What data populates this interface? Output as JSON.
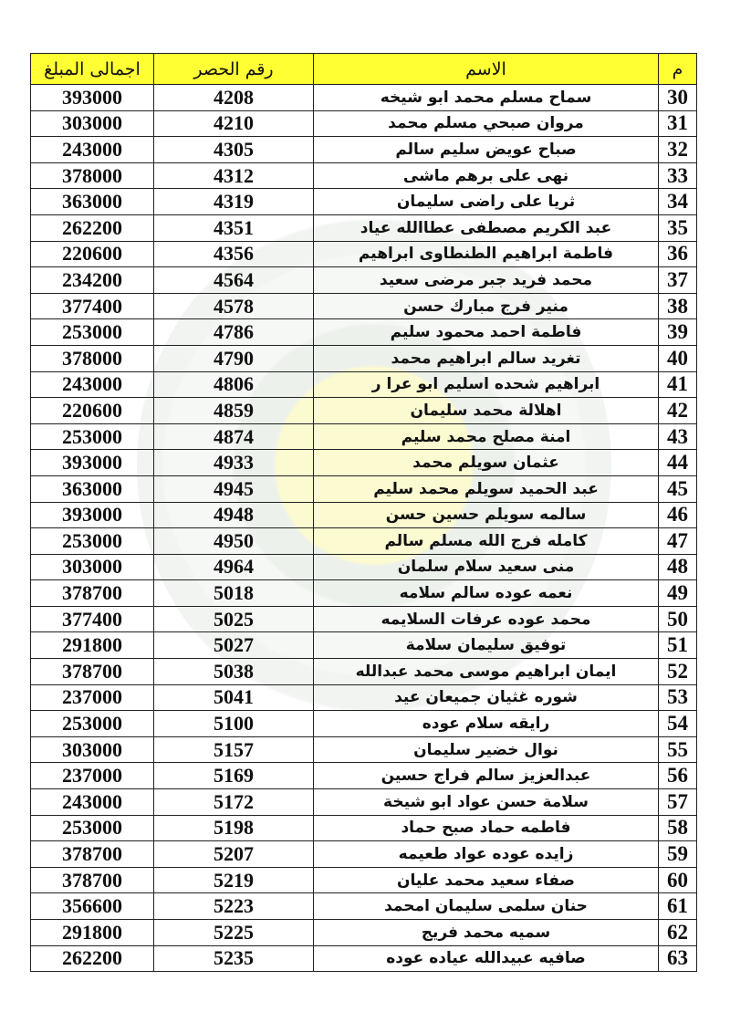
{
  "headers": {
    "m": "م",
    "name": "الاسم",
    "number": "رقم الحصر",
    "amount": "اجمالى المبلغ"
  },
  "rows": [
    {
      "m": "30",
      "name": "سماح مسلم محمد ابو شيخه",
      "number": "4208",
      "amount": "393000"
    },
    {
      "m": "31",
      "name": "مروان صبحي مسلم محمد",
      "number": "4210",
      "amount": "303000"
    },
    {
      "m": "32",
      "name": "صباح عويض سليم سالم",
      "number": "4305",
      "amount": "243000"
    },
    {
      "m": "33",
      "name": "نهى على برهم ماشى",
      "number": "4312",
      "amount": "378000"
    },
    {
      "m": "34",
      "name": "ثريا على راضى سليمان",
      "number": "4319",
      "amount": "363000"
    },
    {
      "m": "35",
      "name": "عبد الكريم مصطفى عطاالله  عياد",
      "number": "4351",
      "amount": "262200"
    },
    {
      "m": "36",
      "name": "فاطمة ابراهيم الطنطاوى ابراهيم",
      "number": "4356",
      "amount": "220600"
    },
    {
      "m": "37",
      "name": "محمد فريد جبر مرضى سعيد",
      "number": "4564",
      "amount": "234200"
    },
    {
      "m": "38",
      "name": "منير فرج مبارك حسن",
      "number": "4578",
      "amount": "377400"
    },
    {
      "m": "39",
      "name": "فاطمة احمد محمود سليم",
      "number": "4786",
      "amount": "253000"
    },
    {
      "m": "40",
      "name": "تغريد سالم ابراهيم محمد",
      "number": "4790",
      "amount": "378000"
    },
    {
      "m": "41",
      "name": "ابراهيم شحده اسليم ابو عرا ر",
      "number": "4806",
      "amount": "243000"
    },
    {
      "m": "42",
      "name": "اهلالة محمد سليمان",
      "number": "4859",
      "amount": "220600"
    },
    {
      "m": "43",
      "name": "امنة مصلح محمد سليم",
      "number": "4874",
      "amount": "253000"
    },
    {
      "m": "44",
      "name": "عثمان سويلم محمد",
      "number": "4933",
      "amount": "393000"
    },
    {
      "m": "45",
      "name": "عبد الحميد سويلم محمد سليم",
      "number": "4945",
      "amount": "363000"
    },
    {
      "m": "46",
      "name": "سالمه سويلم حسين حسن",
      "number": "4948",
      "amount": "393000"
    },
    {
      "m": "47",
      "name": "كامله فرج الله مسلم سالم",
      "number": "4950",
      "amount": "253000"
    },
    {
      "m": "48",
      "name": "منى سعيد سلام سلمان",
      "number": "4964",
      "amount": "303000"
    },
    {
      "m": "49",
      "name": "نعمه عوده سالم سلامه",
      "number": "5018",
      "amount": "378700"
    },
    {
      "m": "50",
      "name": "محمد عوده عرفات السلايمه",
      "number": "5025",
      "amount": "377400"
    },
    {
      "m": "51",
      "name": "توفيق سليمان سلامة",
      "number": "5027",
      "amount": "291800"
    },
    {
      "m": "52",
      "name": "ايمان ابراهيم موسى محمد عبدالله",
      "number": "5038",
      "amount": "378700"
    },
    {
      "m": "53",
      "name": "شوره غثيان جميعان عيد",
      "number": "5041",
      "amount": "237000"
    },
    {
      "m": "54",
      "name": "رايقه سلام عوده",
      "number": "5100",
      "amount": "253000"
    },
    {
      "m": "55",
      "name": "نوال خضير سليمان",
      "number": "5157",
      "amount": "303000"
    },
    {
      "m": "56",
      "name": "عبدالعزيز سالم فراج حسين",
      "number": "5169",
      "amount": "237000"
    },
    {
      "m": "57",
      "name": "سلامة حسن عواد ابو شيخة",
      "number": "5172",
      "amount": "243000"
    },
    {
      "m": "58",
      "name": "فاطمه حماد صبح حماد",
      "number": "5198",
      "amount": "253000"
    },
    {
      "m": "59",
      "name": "زايده عوده عواد طعيمه",
      "number": "5207",
      "amount": "378700"
    },
    {
      "m": "60",
      "name": "صفاء سعيد محمد عليان",
      "number": "5219",
      "amount": "378700"
    },
    {
      "m": "61",
      "name": "حنان سلمى سليمان امحمد",
      "number": "5223",
      "amount": "356600"
    },
    {
      "m": "62",
      "name": "سميه محمد فريج",
      "number": "5225",
      "amount": "291800"
    },
    {
      "m": "63",
      "name": "صافيه عبيدالله عياده عوده",
      "number": "5235",
      "amount": "262200"
    }
  ],
  "colors": {
    "header_bg": "#ffff33"
  }
}
